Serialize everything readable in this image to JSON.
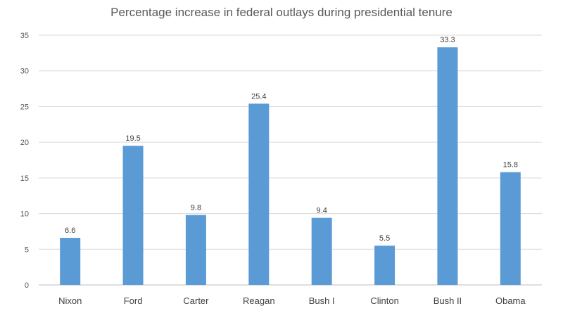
{
  "chart_data": {
    "type": "bar",
    "title": "Percentage increase in federal outlays during presidential tenure",
    "categories": [
      "Nixon",
      "Ford",
      "Carter",
      "Reagan",
      "Bush I",
      "Clinton",
      "Bush II",
      "Obama"
    ],
    "values": [
      6.6,
      19.5,
      9.8,
      25.4,
      9.4,
      5.5,
      33.3,
      15.8
    ],
    "data_labels": [
      "6.6",
      "19.5",
      "9.8",
      "25.4",
      "9.4",
      "5.5",
      "33.3",
      "15.8"
    ],
    "ylim": [
      0,
      35
    ],
    "yticks": [
      0,
      5,
      10,
      15,
      20,
      25,
      30,
      35
    ],
    "grid": true,
    "legend": "none",
    "bar_color": "#5b9bd5"
  }
}
